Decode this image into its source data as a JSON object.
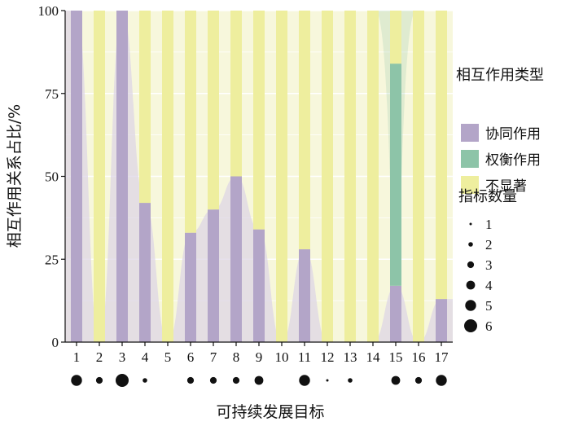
{
  "chart_data": {
    "type": "bar",
    "stacked": true,
    "xlabel": "可持续发展目标",
    "ylabel": "相互作用关系占比/%",
    "ylim": [
      0,
      100
    ],
    "yticks": [
      0,
      25,
      50,
      75,
      100
    ],
    "categories": [
      "1",
      "2",
      "3",
      "4",
      "5",
      "6",
      "7",
      "8",
      "9",
      "10",
      "11",
      "12",
      "13",
      "14",
      "15",
      "16",
      "17"
    ],
    "series": [
      {
        "name": "协同作用",
        "color": "#b3a5c8",
        "values": [
          100,
          0,
          100,
          42,
          0,
          33,
          40,
          50,
          34,
          0,
          28,
          0,
          0,
          0,
          17,
          0,
          13
        ]
      },
      {
        "name": "权衡作用",
        "color": "#8dc4a8",
        "values": [
          0,
          0,
          0,
          0,
          0,
          0,
          0,
          0,
          0,
          0,
          0,
          0,
          0,
          0,
          67,
          0,
          0
        ]
      },
      {
        "name": "不显著",
        "color": "#eeee9e",
        "values": [
          0,
          100,
          0,
          58,
          100,
          67,
          60,
          50,
          66,
          100,
          72,
          100,
          100,
          100,
          16,
          100,
          87
        ]
      }
    ],
    "indicator_counts": [
      5,
      3,
      6,
      2,
      0,
      3,
      3,
      3,
      4,
      0,
      5,
      1,
      2,
      0,
      4,
      3,
      5
    ],
    "legend": {
      "title": "相互作用类型",
      "entries": [
        "协同作用",
        "权衡作用",
        "不显著"
      ],
      "placement": "right"
    },
    "size_legend": {
      "title": "指标数量",
      "values": [
        1,
        2,
        3,
        4,
        5,
        6
      ]
    },
    "grid": true,
    "background_fill": "#f7f7dc",
    "smooth_band_color": "#ddd5e6"
  }
}
